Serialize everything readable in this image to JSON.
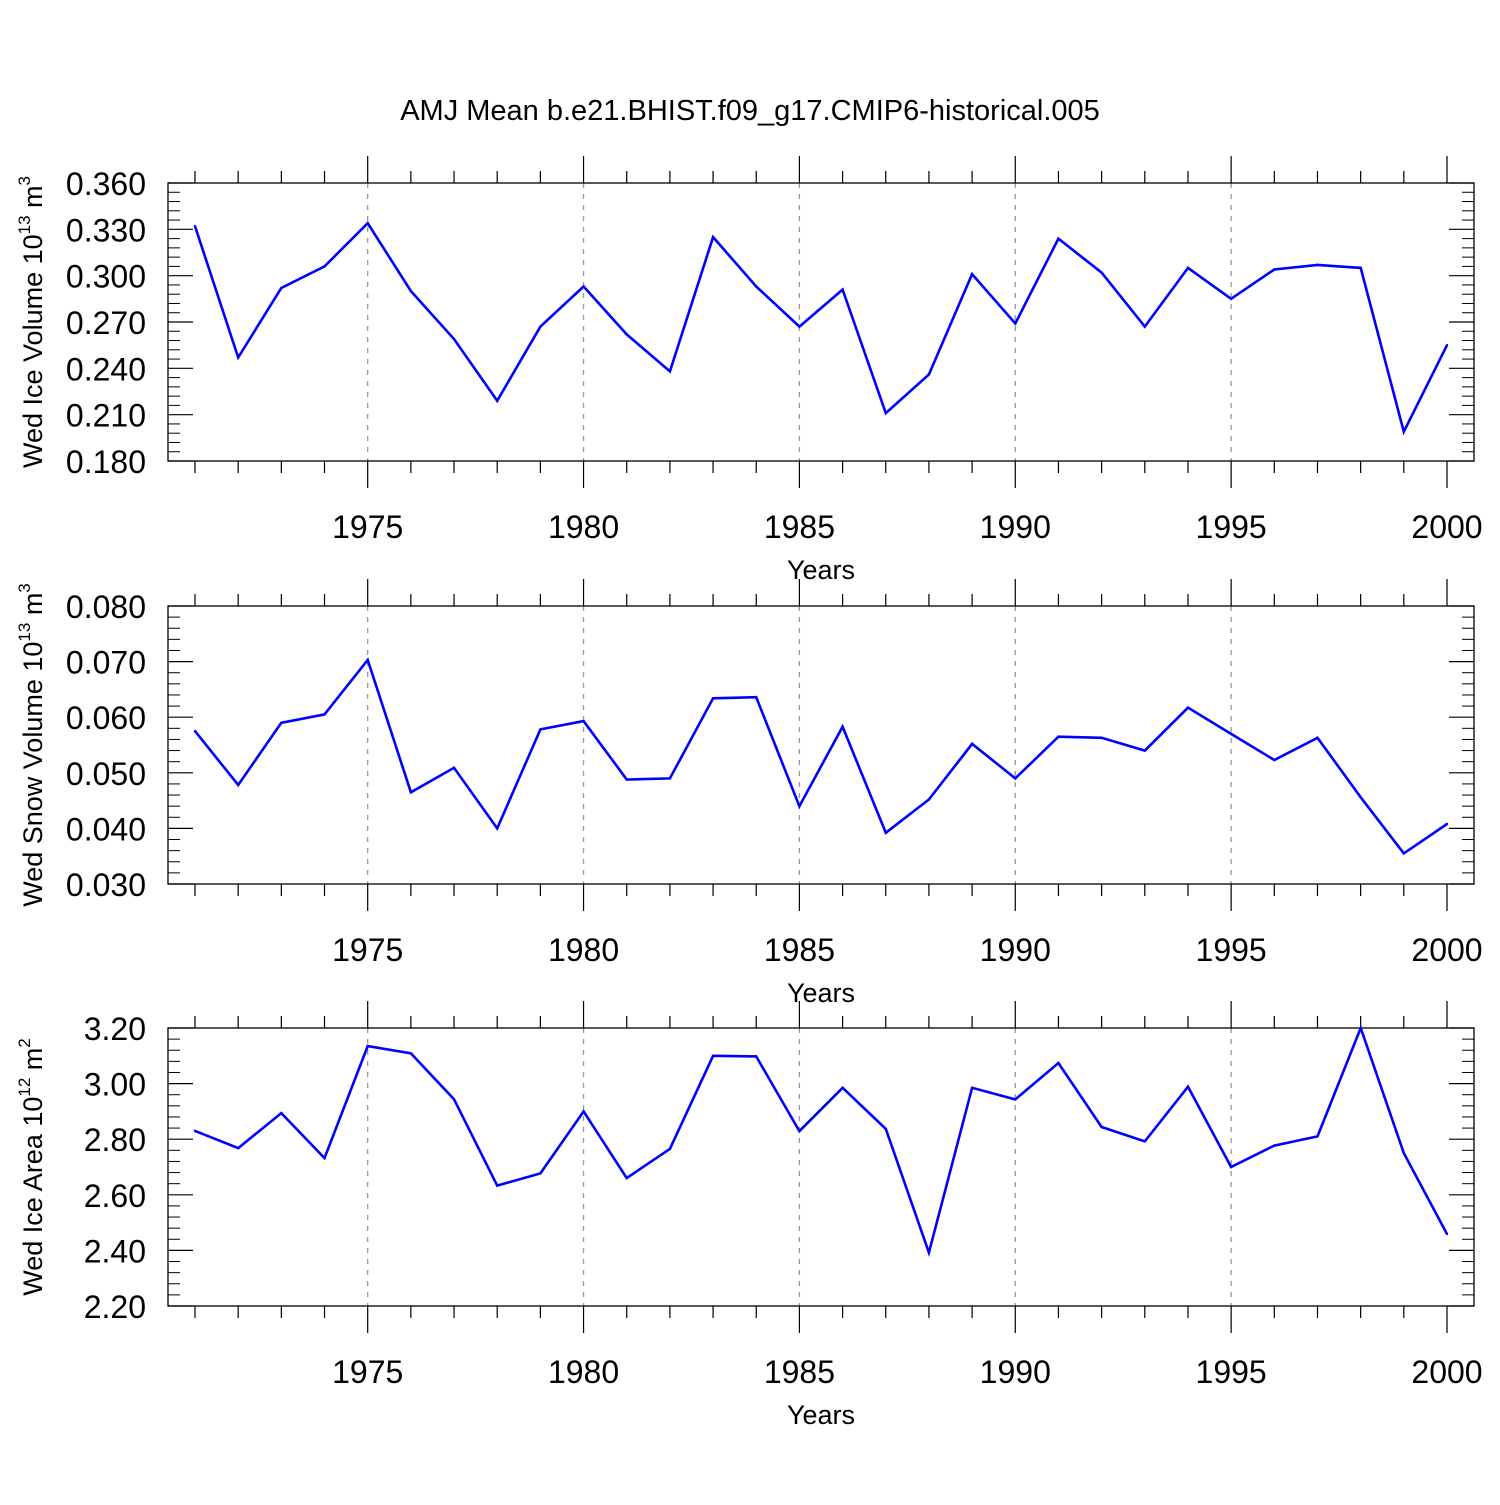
{
  "title": "AMJ Mean b.e21.BHIST.f09_g17.CMIP6-historical.005",
  "colors": {
    "series": "#0000ff",
    "axis": "#000000",
    "grid": "#999999"
  },
  "chart_data": [
    {
      "type": "line",
      "ylabel": {
        "main": "Wed Ice Volume 10",
        "sup": "13",
        "unit": "m",
        "unit_sup": "3"
      },
      "xlabel": "Years",
      "xlim": [
        1971,
        2000
      ],
      "ylim": [
        0.18,
        0.36
      ],
      "yticks": [
        "0.180",
        "0.210",
        "0.240",
        "0.270",
        "0.300",
        "0.330",
        "0.360"
      ],
      "xticks": [
        "1975",
        "1980",
        "1985",
        "1990",
        "1995",
        "2000"
      ],
      "x": [
        1971,
        1972,
        1973,
        1974,
        1975,
        1976,
        1977,
        1978,
        1979,
        1980,
        1981,
        1982,
        1983,
        1984,
        1985,
        1986,
        1987,
        1988,
        1989,
        1990,
        1991,
        1992,
        1993,
        1994,
        1995,
        1996,
        1997,
        1998,
        1999,
        2000
      ],
      "values": [
        0.332,
        0.247,
        0.292,
        0.306,
        0.334,
        0.29,
        0.259,
        0.219,
        0.267,
        0.293,
        0.262,
        0.238,
        0.325,
        0.293,
        0.267,
        0.291,
        0.211,
        0.236,
        0.301,
        0.269,
        0.324,
        0.302,
        0.267,
        0.305,
        0.285,
        0.304,
        0.307,
        0.305,
        0.199,
        0.255
      ],
      "grid": "vertical dashed at major ticks"
    },
    {
      "type": "line",
      "ylabel": {
        "main": "Wed Snow Volume 10",
        "sup": "13",
        "unit": "m",
        "unit_sup": "3"
      },
      "xlabel": "Years",
      "xlim": [
        1971,
        2000
      ],
      "ylim": [
        0.03,
        0.08
      ],
      "yticks": [
        "0.030",
        "0.040",
        "0.050",
        "0.060",
        "0.070",
        "0.080"
      ],
      "xticks": [
        "1975",
        "1980",
        "1985",
        "1990",
        "1995",
        "2000"
      ],
      "x": [
        1971,
        1972,
        1973,
        1974,
        1975,
        1976,
        1977,
        1978,
        1979,
        1980,
        1981,
        1982,
        1983,
        1984,
        1985,
        1986,
        1987,
        1988,
        1989,
        1990,
        1991,
        1992,
        1993,
        1994,
        1995,
        1996,
        1997,
        1998,
        1999,
        2000
      ],
      "values": [
        0.0575,
        0.0478,
        0.059,
        0.0605,
        0.0703,
        0.0465,
        0.0509,
        0.04,
        0.0578,
        0.0593,
        0.0488,
        0.049,
        0.0634,
        0.0636,
        0.044,
        0.0583,
        0.0392,
        0.0452,
        0.0552,
        0.049,
        0.0565,
        0.0563,
        0.054,
        0.0617,
        0.057,
        0.0523,
        0.0563,
        0.0456,
        0.0355,
        0.0408
      ],
      "grid": "vertical dashed at major ticks"
    },
    {
      "type": "line",
      "ylabel": {
        "main": "Wed Ice Area 10",
        "sup": "12",
        "unit": "m",
        "unit_sup": "2"
      },
      "xlabel": "Years",
      "xlim": [
        1971,
        2000
      ],
      "ylim": [
        2.2,
        3.2
      ],
      "yticks": [
        "2.20",
        "2.40",
        "2.60",
        "2.80",
        "3.00",
        "3.20"
      ],
      "xticks": [
        "1975",
        "1980",
        "1985",
        "1990",
        "1995",
        "2000"
      ],
      "x": [
        1971,
        1972,
        1973,
        1974,
        1975,
        1976,
        1977,
        1978,
        1979,
        1980,
        1981,
        1982,
        1983,
        1984,
        1985,
        1986,
        1987,
        1988,
        1989,
        1990,
        1991,
        1992,
        1993,
        1994,
        1995,
        1996,
        1997,
        1998,
        1999,
        2000
      ],
      "values": [
        2.83,
        2.768,
        2.894,
        2.732,
        3.135,
        3.109,
        2.944,
        2.633,
        2.677,
        2.9,
        2.66,
        2.765,
        3.1,
        3.098,
        2.829,
        2.985,
        2.837,
        2.392,
        2.985,
        2.943,
        3.074,
        2.844,
        2.792,
        2.989,
        2.7,
        2.777,
        2.81,
        3.2,
        2.75,
        2.459
      ],
      "grid": "vertical dashed at major ticks"
    }
  ]
}
